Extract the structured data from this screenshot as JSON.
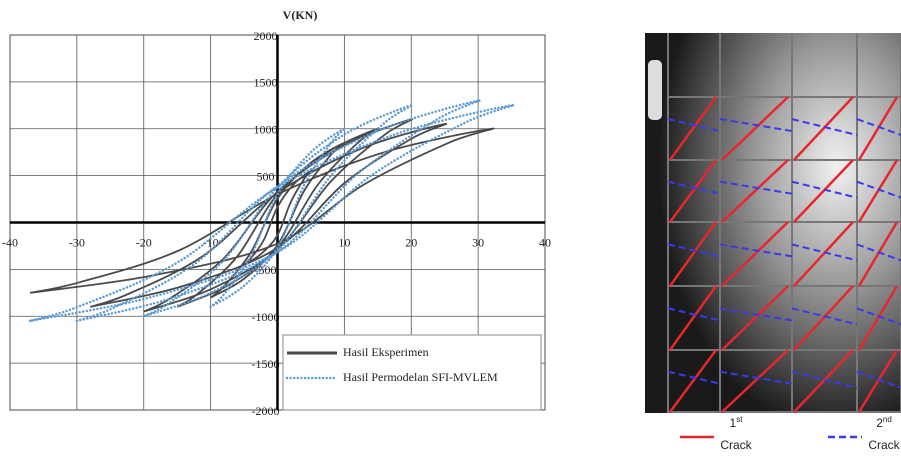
{
  "chart_data": {
    "type": "line",
    "y_label": "V(KN)",
    "xlim": [
      -40,
      40
    ],
    "ylim": [
      -2000,
      2000
    ],
    "xticks": [
      -40,
      -30,
      -20,
      -10,
      10,
      20,
      30,
      40
    ],
    "yticks": [
      -2000,
      -1500,
      -1000,
      -500,
      500,
      1000,
      1500,
      2000
    ],
    "grid": true,
    "legend": "lower right",
    "series": [
      {
        "name": "Hasil Eksperimen",
        "color": "#4a4a4a",
        "style": "solid",
        "x": [
          -5,
          -2.5,
          0,
          2,
          4,
          5,
          2.5,
          0,
          -2,
          -4,
          -5,
          null,
          -10,
          -5,
          0,
          4,
          8,
          10,
          5,
          0,
          -4,
          -8,
          -10,
          null,
          -15,
          -7.5,
          0,
          6,
          12,
          15,
          7.5,
          0,
          -6,
          -12,
          -15,
          null,
          -20,
          -10,
          0,
          8,
          16,
          20,
          10,
          0,
          -8,
          -16,
          -20,
          null,
          -28,
          -14,
          0,
          10,
          20,
          25,
          12.5,
          0,
          -11.2,
          -22.4,
          -28,
          null,
          -37,
          -18.5,
          0,
          12.8,
          25.6,
          32,
          16,
          0,
          -14.8,
          -29.6,
          -37
        ],
        "values": [
          -450,
          -338,
          -135,
          220,
          468,
          550,
          413,
          165,
          -180,
          -383,
          -450,
          null,
          -800,
          -600,
          -240,
          340,
          723,
          850,
          638,
          255,
          -320,
          -680,
          -800,
          null,
          -900,
          -675,
          -270,
          400,
          850,
          1000,
          750,
          300,
          -360,
          -765,
          -900,
          null,
          -950,
          -713,
          -285,
          440,
          935,
          1100,
          825,
          330,
          -380,
          -808,
          -950,
          null,
          -900,
          -675,
          -270,
          420,
          893,
          1050,
          788,
          315,
          -360,
          -765,
          -900,
          null,
          -750,
          -563,
          -225,
          400,
          850,
          1000,
          750,
          300,
          -300,
          -638,
          -750
        ]
      },
      {
        "name": "Hasil Permodelan SFI-MVLEM",
        "color": "#5b9bd5",
        "style": "dotted",
        "x": [
          -10,
          -5,
          0,
          4,
          8,
          10,
          5,
          0,
          -4,
          -8,
          -10,
          null,
          -20,
          -10,
          0,
          8,
          16,
          20,
          10,
          0,
          -8,
          -16,
          -20,
          null,
          -30,
          -15,
          0,
          12,
          24,
          30,
          15,
          0,
          -12,
          -24,
          -30,
          null,
          -37,
          -18.5,
          0,
          14,
          28,
          35,
          17.5,
          0,
          -14.8,
          -29.6,
          -37
        ],
        "values": [
          -900,
          -675,
          -270,
          400,
          850,
          1000,
          750,
          300,
          -360,
          -765,
          -900,
          null,
          -1000,
          -750,
          -300,
          500,
          1063,
          1250,
          938,
          375,
          -400,
          -850,
          -1000,
          null,
          -1050,
          -788,
          -315,
          520,
          1105,
          1300,
          975,
          390,
          -420,
          -893,
          -1050,
          null,
          -1050,
          -788,
          -315,
          500,
          1063,
          1250,
          938,
          375,
          -420,
          -893,
          -1050
        ]
      }
    ]
  },
  "photo_legend": [
    {
      "number": "1",
      "suffix": "st",
      "label": "Crack",
      "color": "#e8262b",
      "style": "solid"
    },
    {
      "number": "2",
      "suffix": "nd",
      "label": "Crack",
      "color": "#3a3ae8",
      "style": "dashed"
    }
  ]
}
